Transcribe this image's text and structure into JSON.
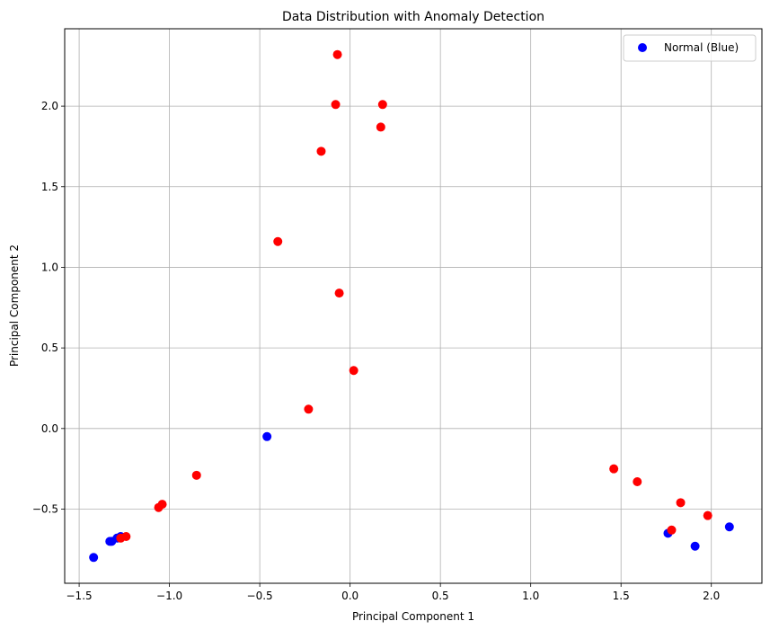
{
  "chart_data": {
    "type": "scatter",
    "title": "Data Distribution with Anomaly Detection",
    "xlabel": "Principal Component 1",
    "ylabel": "Principal Component 2",
    "xlim": [
      -1.58,
      2.28
    ],
    "ylim": [
      -0.96,
      2.48
    ],
    "xticks": [
      -1.5,
      -1.0,
      -0.5,
      0.0,
      0.5,
      1.0,
      1.5,
      2.0
    ],
    "yticks": [
      -0.5,
      0.0,
      0.5,
      1.0,
      1.5,
      2.0
    ],
    "xtick_labels": [
      "−1.5",
      "−1.0",
      "−0.5",
      "0.0",
      "0.5",
      "1.0",
      "1.5",
      "2.0"
    ],
    "ytick_labels": [
      "−0.5",
      "0.0",
      "0.5",
      "1.0",
      "1.5",
      "2.0"
    ],
    "grid": true,
    "legend": {
      "position": "top-right",
      "entries": [
        {
          "label": "Normal (Blue)",
          "color": "#0000ff"
        }
      ]
    },
    "series": [
      {
        "name": "Normal (Blue)",
        "color": "#0000ff",
        "points": [
          [
            -1.42,
            -0.8
          ],
          [
            -1.33,
            -0.7
          ],
          [
            -1.32,
            -0.7
          ],
          [
            -1.29,
            -0.68
          ],
          [
            -1.27,
            -0.67
          ],
          [
            -0.46,
            -0.05
          ],
          [
            1.76,
            -0.65
          ],
          [
            1.91,
            -0.73
          ],
          [
            2.1,
            -0.61
          ]
        ]
      },
      {
        "name": "",
        "color": "#ff0000",
        "points": [
          [
            -1.27,
            -0.68
          ],
          [
            -1.24,
            -0.67
          ],
          [
            -1.06,
            -0.49
          ],
          [
            -1.04,
            -0.47
          ],
          [
            -0.85,
            -0.29
          ],
          [
            -0.4,
            1.16
          ],
          [
            -0.23,
            0.12
          ],
          [
            -0.16,
            1.72
          ],
          [
            -0.08,
            2.01
          ],
          [
            -0.07,
            2.32
          ],
          [
            -0.06,
            0.84
          ],
          [
            0.02,
            0.36
          ],
          [
            0.17,
            1.87
          ],
          [
            0.18,
            2.01
          ],
          [
            1.46,
            -0.25
          ],
          [
            1.59,
            -0.33
          ],
          [
            1.78,
            -0.63
          ],
          [
            1.83,
            -0.46
          ],
          [
            1.98,
            -0.54
          ]
        ]
      }
    ]
  }
}
